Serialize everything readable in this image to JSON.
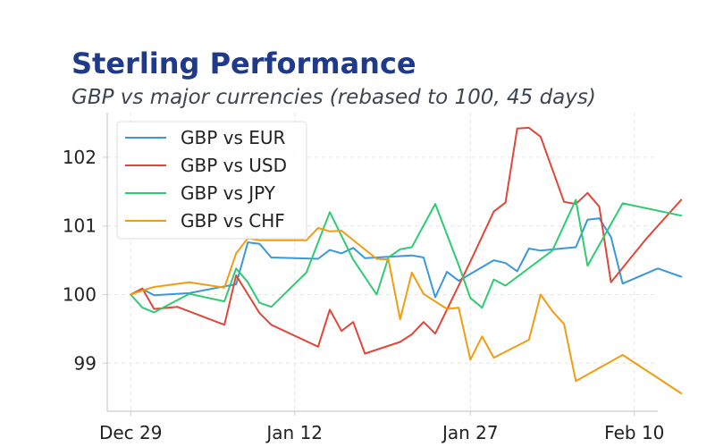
{
  "header": {
    "title": "Sterling Performance",
    "subtitle": "GBP vs major currencies (rebased to 100, 45 days)"
  },
  "chart_data": {
    "type": "line",
    "title": "Sterling Performance",
    "subtitle": "GBP vs major currencies (rebased to 100, 45 days)",
    "xlabel": "",
    "ylabel": "",
    "x_type": "date",
    "x_ticks": [
      {
        "date": "2024-12-29",
        "label": "Dec 29"
      },
      {
        "date": "2025-01-12",
        "label": "Jan 12"
      },
      {
        "date": "2025-01-27",
        "label": "Jan 27"
      },
      {
        "date": "2025-02-10",
        "label": "Feb 10"
      }
    ],
    "y_ticks": [
      99,
      100,
      101,
      102
    ],
    "xlim": [
      "2024-12-27",
      "2025-02-12"
    ],
    "ylim": [
      98.3,
      102.65
    ],
    "grid": true,
    "legend_position": "top-left",
    "series": [
      {
        "name": "GBP vs EUR",
        "color": "#3a98d8",
        "points": [
          [
            "2024-12-29",
            100.0
          ],
          [
            "2024-12-30",
            100.08
          ],
          [
            "2024-12-31",
            99.99
          ],
          [
            "2025-01-03",
            100.02
          ],
          [
            "2025-01-06",
            100.12
          ],
          [
            "2025-01-07",
            100.15
          ],
          [
            "2025-01-08",
            100.76
          ],
          [
            "2025-01-09",
            100.74
          ],
          [
            "2025-01-10",
            100.54
          ],
          [
            "2025-01-14",
            100.52
          ],
          [
            "2025-01-15",
            100.65
          ],
          [
            "2025-01-16",
            100.6
          ],
          [
            "2025-01-17",
            100.68
          ],
          [
            "2025-01-18",
            100.53
          ],
          [
            "2025-01-22",
            100.57
          ],
          [
            "2025-01-23",
            100.54
          ],
          [
            "2025-01-24",
            99.96
          ],
          [
            "2025-01-25",
            100.33
          ],
          [
            "2025-01-26",
            100.2
          ],
          [
            "2025-01-29",
            100.5
          ],
          [
            "2025-01-30",
            100.46
          ],
          [
            "2025-01-31",
            100.34
          ],
          [
            "2025-02-01",
            100.67
          ],
          [
            "2025-02-02",
            100.64
          ],
          [
            "2025-02-05",
            100.69
          ],
          [
            "2025-02-06",
            101.09
          ],
          [
            "2025-02-07",
            101.11
          ],
          [
            "2025-02-08",
            100.84
          ],
          [
            "2025-02-09",
            100.16
          ],
          [
            "2025-02-12",
            100.38
          ],
          [
            "2025-02-14",
            100.26
          ]
        ]
      },
      {
        "name": "GBP vs USD",
        "color": "#e0473a",
        "points": [
          [
            "2024-12-29",
            100.0
          ],
          [
            "2024-12-30",
            100.09
          ],
          [
            "2024-12-31",
            99.79
          ],
          [
            "2025-01-02",
            99.82
          ],
          [
            "2025-01-06",
            99.56
          ],
          [
            "2025-01-07",
            100.28
          ],
          [
            "2025-01-09",
            99.73
          ],
          [
            "2025-01-10",
            99.56
          ],
          [
            "2025-01-14",
            99.24
          ],
          [
            "2025-01-15",
            99.78
          ],
          [
            "2025-01-16",
            99.47
          ],
          [
            "2025-01-17",
            99.6
          ],
          [
            "2025-01-18",
            99.14
          ],
          [
            "2025-01-21",
            99.31
          ],
          [
            "2025-01-22",
            99.42
          ],
          [
            "2025-01-23",
            99.6
          ],
          [
            "2025-01-24",
            99.43
          ],
          [
            "2025-01-27",
            100.48
          ],
          [
            "2025-01-29",
            101.21
          ],
          [
            "2025-01-30",
            101.34
          ],
          [
            "2025-01-31",
            102.42
          ],
          [
            "2025-02-01",
            102.43
          ],
          [
            "2025-02-02",
            102.3
          ],
          [
            "2025-02-04",
            101.35
          ],
          [
            "2025-02-05",
            101.32
          ],
          [
            "2025-02-06",
            101.48
          ],
          [
            "2025-02-07",
            101.28
          ],
          [
            "2025-02-08",
            100.18
          ],
          [
            "2025-02-11",
            100.81
          ],
          [
            "2025-02-14",
            101.38
          ]
        ]
      },
      {
        "name": "GBP vs JPY",
        "color": "#2ecc71",
        "points": [
          [
            "2024-12-29",
            100.0
          ],
          [
            "2024-12-30",
            99.81
          ],
          [
            "2024-12-31",
            99.74
          ],
          [
            "2025-01-03",
            100.01
          ],
          [
            "2025-01-06",
            99.9
          ],
          [
            "2025-01-07",
            100.38
          ],
          [
            "2025-01-08",
            100.18
          ],
          [
            "2025-01-09",
            99.88
          ],
          [
            "2025-01-10",
            99.82
          ],
          [
            "2025-01-13",
            100.32
          ],
          [
            "2025-01-15",
            101.2
          ],
          [
            "2025-01-17",
            100.51
          ],
          [
            "2025-01-19",
            100.0
          ],
          [
            "2025-01-20",
            100.54
          ],
          [
            "2025-01-21",
            100.66
          ],
          [
            "2025-01-22",
            100.69
          ],
          [
            "2025-01-24",
            101.32
          ],
          [
            "2025-01-26",
            100.43
          ],
          [
            "2025-01-27",
            99.95
          ],
          [
            "2025-01-28",
            99.81
          ],
          [
            "2025-01-29",
            100.22
          ],
          [
            "2025-01-30",
            100.13
          ],
          [
            "2025-02-03",
            100.64
          ],
          [
            "2025-02-05",
            101.38
          ],
          [
            "2025-02-06",
            100.42
          ],
          [
            "2025-02-09",
            101.33
          ],
          [
            "2025-02-14",
            101.15
          ]
        ]
      },
      {
        "name": "GBP vs CHF",
        "color": "#f39c12",
        "points": [
          [
            "2024-12-29",
            100.0
          ],
          [
            "2024-12-30",
            100.06
          ],
          [
            "2024-12-31",
            100.11
          ],
          [
            "2025-01-03",
            100.18
          ],
          [
            "2025-01-06",
            100.1
          ],
          [
            "2025-01-07",
            100.6
          ],
          [
            "2025-01-08",
            100.82
          ],
          [
            "2025-01-09",
            100.79
          ],
          [
            "2025-01-13",
            100.79
          ],
          [
            "2025-01-14",
            100.97
          ],
          [
            "2025-01-15",
            100.92
          ],
          [
            "2025-01-16",
            100.93
          ],
          [
            "2025-01-19",
            100.52
          ],
          [
            "2025-01-20",
            100.51
          ],
          [
            "2025-01-21",
            99.64
          ],
          [
            "2025-01-22",
            100.32
          ],
          [
            "2025-01-23",
            100.01
          ],
          [
            "2025-01-25",
            99.79
          ],
          [
            "2025-01-26",
            99.81
          ],
          [
            "2025-01-27",
            99.05
          ],
          [
            "2025-01-28",
            99.39
          ],
          [
            "2025-01-29",
            99.08
          ],
          [
            "2025-02-01",
            99.34
          ],
          [
            "2025-02-02",
            100.0
          ],
          [
            "2025-02-03",
            99.76
          ],
          [
            "2025-02-04",
            99.57
          ],
          [
            "2025-02-05",
            98.74
          ],
          [
            "2025-02-09",
            99.12
          ],
          [
            "2025-02-14",
            98.56
          ]
        ]
      }
    ]
  }
}
